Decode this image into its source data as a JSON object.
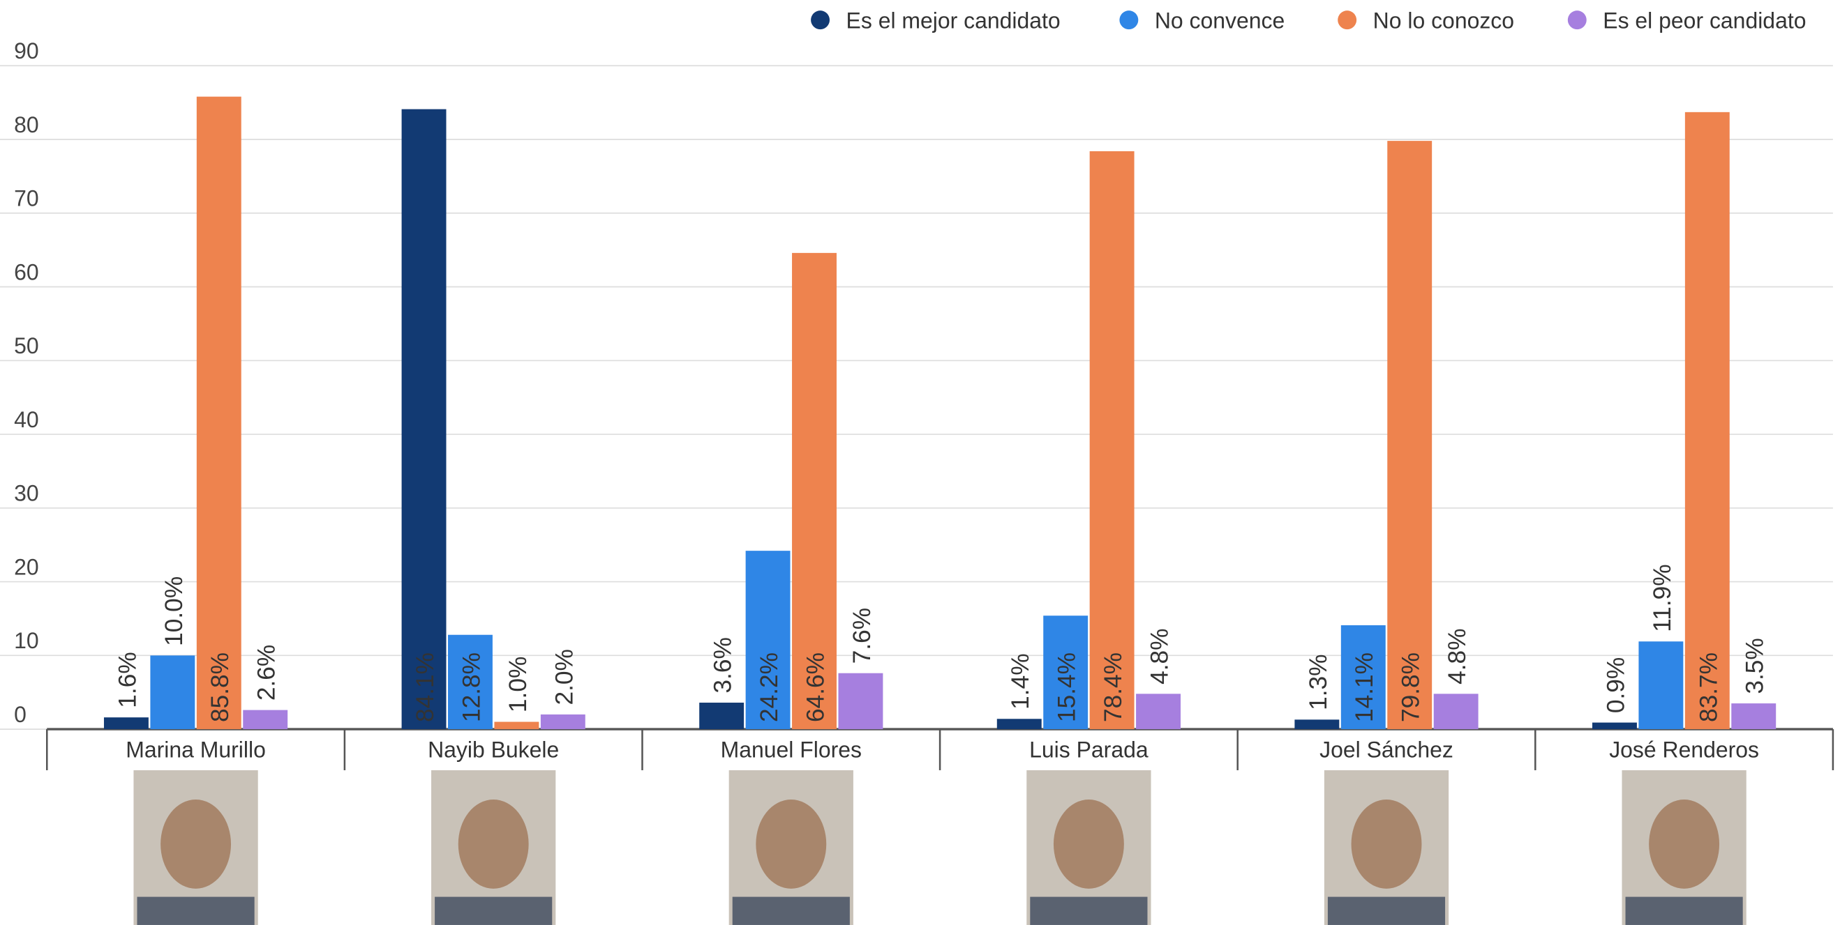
{
  "chart_data": {
    "type": "bar",
    "categories": [
      "Marina Murillo",
      "Nayib Bukele",
      "Manuel Flores",
      "Luis Parada",
      "Joel Sánchez",
      "José Renderos"
    ],
    "series": [
      {
        "name": "Es el mejor candidato",
        "color": "#123a73",
        "values": [
          1.6,
          84.1,
          3.6,
          1.4,
          1.3,
          0.9
        ],
        "value_labels": [
          "1.6%",
          "84.1%",
          "3.6%",
          "1.4%",
          "1.3%",
          "0.9%"
        ]
      },
      {
        "name": "No convence",
        "color": "#2f86e6",
        "values": [
          10.0,
          12.8,
          24.2,
          15.4,
          14.1,
          11.9
        ],
        "value_labels": [
          "10.0%",
          "12.8%",
          "24.2%",
          "15.4%",
          "14.1%",
          "11.9%"
        ]
      },
      {
        "name": "No lo conozco",
        "color": "#ee834e",
        "values": [
          85.8,
          1.0,
          64.6,
          78.4,
          79.8,
          83.7
        ],
        "value_labels": [
          "85.8%",
          "1.0%",
          "64.6%",
          "78.4%",
          "79.8%",
          "83.7%"
        ]
      },
      {
        "name": "Es el peor candidato",
        "color": "#a67fdf",
        "values": [
          2.6,
          2.0,
          7.6,
          4.8,
          4.8,
          3.5
        ],
        "value_labels": [
          "2.6%",
          "2.0%",
          "7.6%",
          "4.8%",
          "4.8%",
          "3.5%"
        ]
      }
    ],
    "ylim": [
      0,
      90
    ],
    "yticks": [
      0,
      10,
      20,
      30,
      40,
      50,
      60,
      70,
      80,
      90
    ],
    "grid": true,
    "legend": "top-right"
  }
}
